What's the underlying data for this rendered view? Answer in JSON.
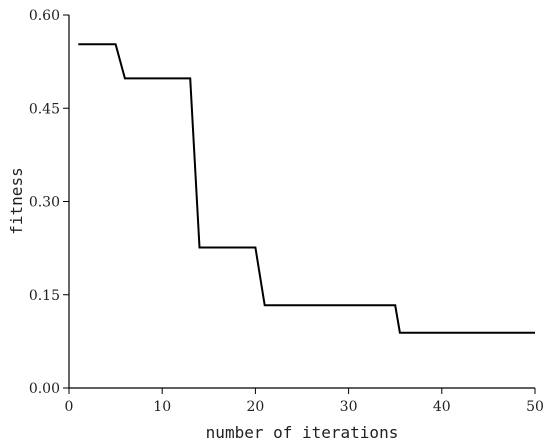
{
  "chart_data": {
    "type": "line",
    "title": "",
    "xlabel": "number of iterations",
    "ylabel": "fitness",
    "xlim": [
      0,
      50
    ],
    "ylim": [
      0.0,
      0.6
    ],
    "xticks": [
      0,
      10,
      20,
      30,
      40,
      50
    ],
    "xtick_labels": [
      "0",
      "10",
      "20",
      "30",
      "40",
      "50"
    ],
    "yticks": [
      0.0,
      0.15,
      0.3,
      0.45,
      0.6
    ],
    "ytick_labels": [
      "0.00",
      "0.15",
      "0.30",
      "0.45",
      "0.60"
    ],
    "grid": false,
    "series": [
      {
        "color": "#000000",
        "x": [
          1,
          5,
          6,
          13,
          14,
          20,
          21,
          35,
          35.5,
          50
        ],
        "y": [
          0.553,
          0.553,
          0.498,
          0.498,
          0.226,
          0.226,
          0.133,
          0.133,
          0.089,
          0.089
        ]
      }
    ]
  }
}
